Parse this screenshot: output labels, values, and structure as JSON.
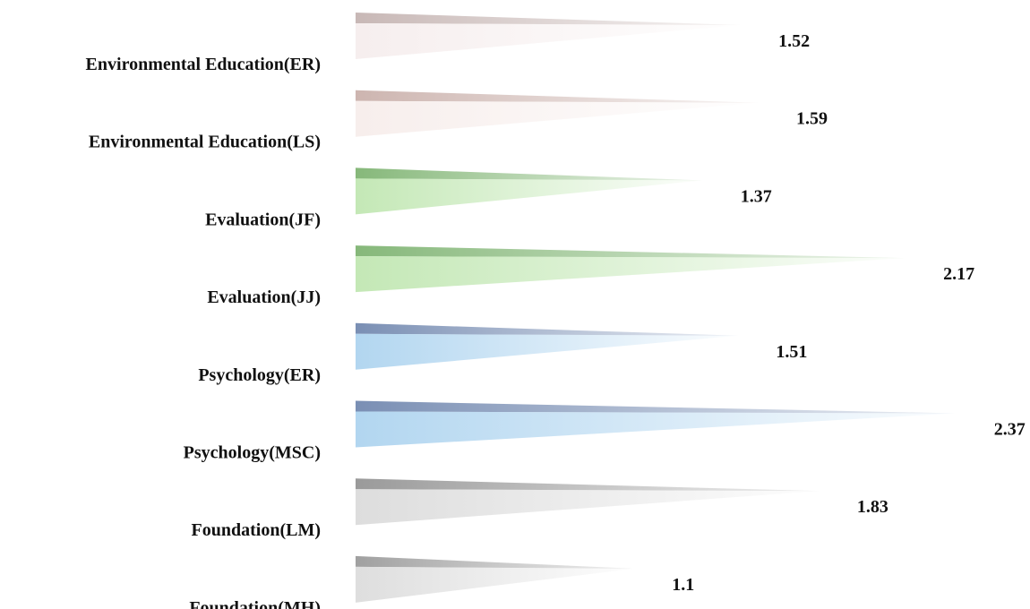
{
  "chart_data": {
    "type": "bar",
    "orientation": "horizontal",
    "title": "",
    "xlabel": "",
    "ylabel": "",
    "grid": false,
    "legend": "none",
    "categories": [
      "Environmental Education(ER)",
      "Environmental Education(LS)",
      "Evaluation(JF)",
      "Evaluation(JJ)",
      "Psychology(ER)",
      "Psychology(MSC)",
      "Foundation(LM)",
      "Foundation(MH)"
    ],
    "values": [
      1.52,
      1.59,
      1.37,
      2.17,
      1.51,
      2.37,
      1.83,
      1.1
    ],
    "value_labels": [
      "1.52",
      "1.59",
      "1.37",
      "2.17",
      "1.51",
      "2.37",
      "1.83",
      "1.1"
    ],
    "colors": [
      {
        "front": "#f6eeee",
        "top": "#c8b8b6"
      },
      {
        "front": "#f7eeec",
        "top": "#cdb5b0"
      },
      {
        "front": "#c4e8b6",
        "top": "#86b87a"
      },
      {
        "front": "#c4e8b6",
        "top": "#86b87a"
      },
      {
        "front": "#b2d6f0",
        "top": "#7a8fb4"
      },
      {
        "front": "#b2d6f0",
        "top": "#7a8fb4"
      },
      {
        "front": "#dddddd",
        "top": "#9a9a9a"
      },
      {
        "front": "#dedede",
        "top": "#a0a0a0"
      }
    ]
  }
}
